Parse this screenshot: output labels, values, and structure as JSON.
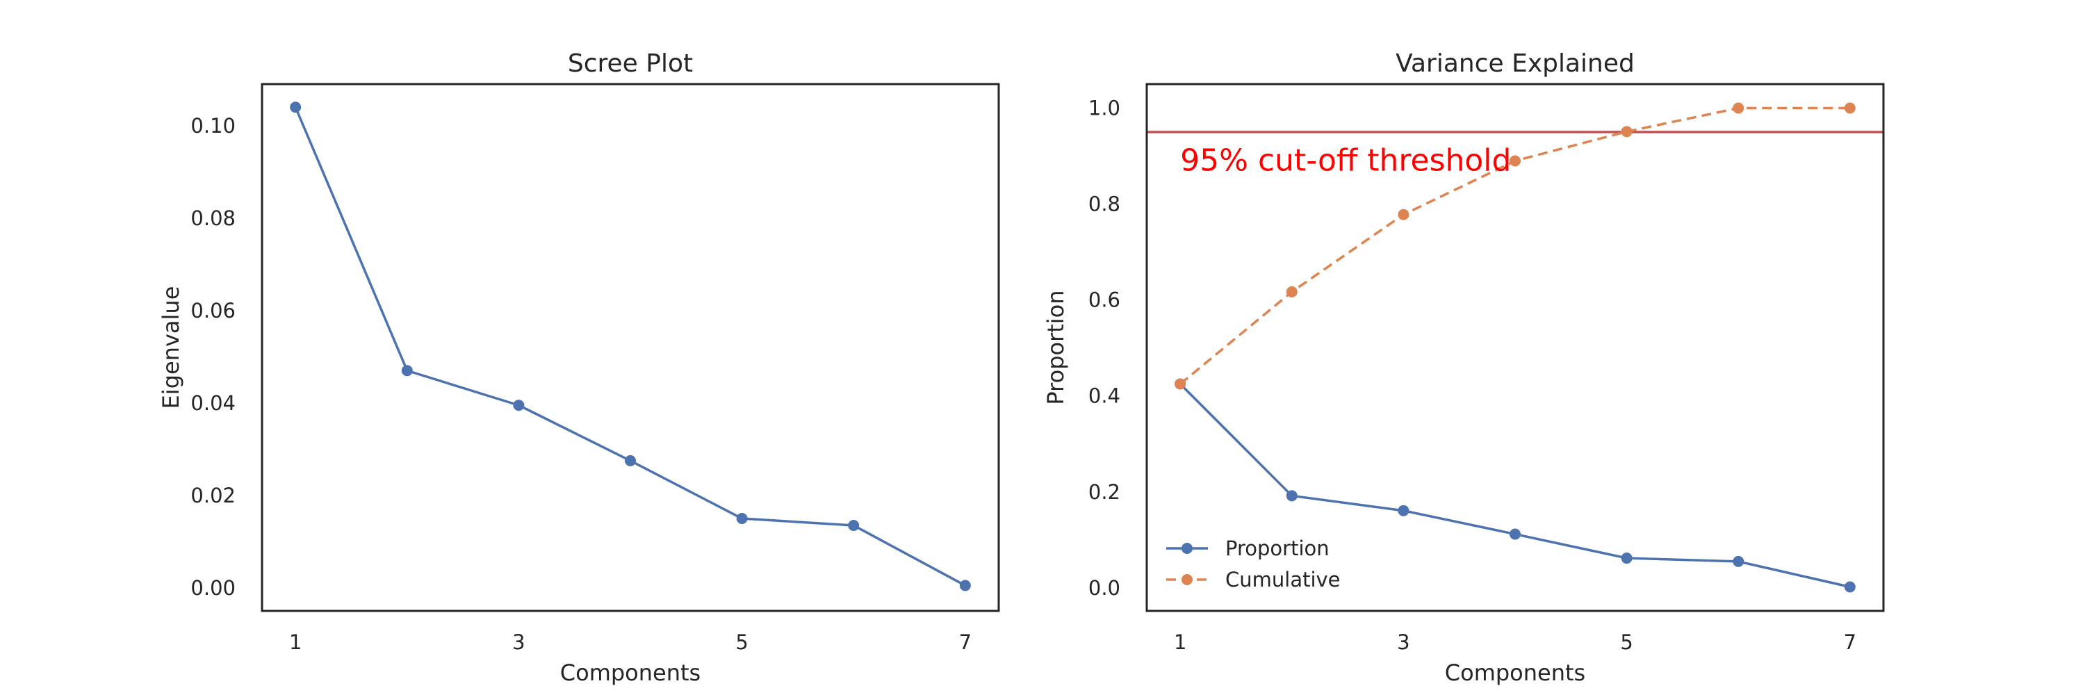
{
  "chart_data": [
    {
      "type": "line",
      "title": "Scree Plot",
      "xlabel": "Components",
      "ylabel": "Eigenvalue",
      "x": [
        1,
        2,
        3,
        4,
        5,
        6,
        7
      ],
      "xticks": [
        1,
        3,
        5,
        7
      ],
      "yticks": [
        0.0,
        0.02,
        0.04,
        0.06,
        0.08,
        0.1
      ],
      "ytick_labels": [
        "0.00",
        "0.02",
        "0.04",
        "0.06",
        "0.08",
        "0.10"
      ],
      "xlim": [
        0.7,
        7.3
      ],
      "ylim": [
        -0.005,
        0.109
      ],
      "grid": false,
      "series": [
        {
          "values": [
            0.104,
            0.047,
            0.0395,
            0.0275,
            0.015,
            0.0135,
            0.0005
          ],
          "color": "#4c72b0",
          "style": "solid-markers"
        }
      ]
    },
    {
      "type": "line",
      "title": "Variance Explained",
      "xlabel": "Components",
      "ylabel": "Proportion",
      "x": [
        1,
        2,
        3,
        4,
        5,
        6,
        7
      ],
      "xticks": [
        1,
        3,
        5,
        7
      ],
      "yticks": [
        0.0,
        0.2,
        0.4,
        0.6,
        0.8,
        1.0
      ],
      "ytick_labels": [
        "0.0",
        "0.2",
        "0.4",
        "0.6",
        "0.8",
        "1.0"
      ],
      "xlim": [
        0.7,
        7.3
      ],
      "ylim": [
        -0.048,
        1.05
      ],
      "grid": false,
      "legend_position": "lower-left",
      "series": [
        {
          "name": "Proportion",
          "values": [
            0.425,
            0.192,
            0.161,
            0.112,
            0.062,
            0.055,
            0.002
          ],
          "color": "#4c72b0",
          "style": "solid-markers"
        },
        {
          "name": "Cumulative",
          "values": [
            0.425,
            0.617,
            0.778,
            0.89,
            0.951,
            1.0,
            1.0
          ],
          "color": "#dd8452",
          "style": "dashed-markers"
        }
      ],
      "hline": {
        "y": 0.95,
        "color": "#c44e52"
      },
      "annotation": {
        "text": "95% cut-off threshold",
        "x": 1.0,
        "y": 0.87,
        "color": "#ff0000"
      }
    }
  ]
}
